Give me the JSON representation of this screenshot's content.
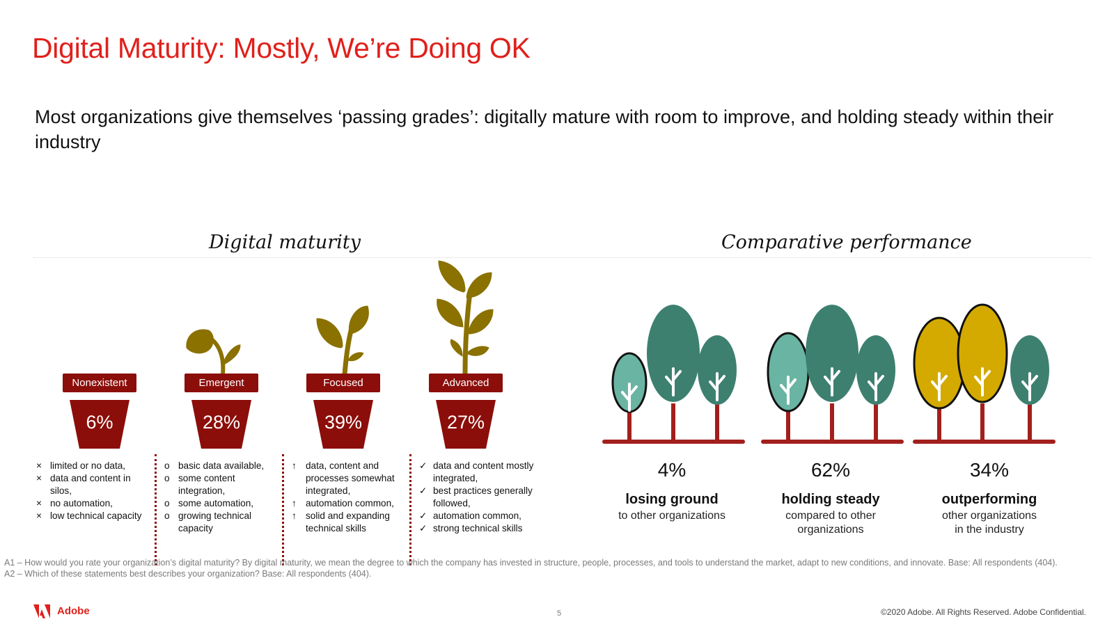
{
  "title": "Digital Maturity: Mostly, We’re Doing OK",
  "subtitle": "Most organizations give themselves ‘passing grades’: digitally mature with room to improve, and holding steady within their industry",
  "sections": {
    "left": "Digital maturity",
    "right": "Comparative performance"
  },
  "maturity": [
    {
      "label": "Nonexistent",
      "percent": "6%",
      "bullet": "×",
      "items": [
        "limited or no data,",
        "data and content in silos,",
        "no automation,",
        "low technical capacity"
      ]
    },
    {
      "label": "Emergent",
      "percent": "28%",
      "bullet": "o",
      "items": [
        "basic data available,",
        "some content integration,",
        "some automation,",
        "growing technical capacity"
      ]
    },
    {
      "label": "Focused",
      "percent": "39%",
      "bullet": "↑",
      "items": [
        "data, content and processes somewhat integrated,",
        "automation common,",
        "solid and expanding technical skills"
      ]
    },
    {
      "label": "Advanced",
      "percent": "27%",
      "bullet": "✓",
      "items": [
        "data and content mostly integrated,",
        "best practices generally followed,",
        "automation common,",
        "strong technical skills"
      ]
    }
  ],
  "performance": [
    {
      "percent": "4%",
      "heading": "losing ground",
      "lines": [
        "to other organizations"
      ]
    },
    {
      "percent": "62%",
      "heading": "holding steady",
      "lines": [
        "compared to other",
        "organizations"
      ]
    },
    {
      "percent": "34%",
      "heading": "outperforming",
      "lines": [
        "other organizations",
        "in the industry"
      ]
    }
  ],
  "footnotes": {
    "a1": "A1 – How would you rate your organization’s digital maturity? By digital maturity, we mean the degree to which the company has invested in structure, people, processes, and tools to understand the market, adapt to new conditions, and innovate. Base: All respondents (404).",
    "a2": "A2 – Which of these statements best describes your organization? Base: All respondents (404)."
  },
  "footer": {
    "brand": "Adobe",
    "page": "5",
    "copyright": "©2020 Adobe. All Rights Reserved. Adobe Confidential."
  },
  "colors": {
    "title_red": "#e0201b",
    "pot_red": "#8b0e0a",
    "plant_olive": "#8a7100",
    "tree_teal": "#3d8070",
    "tree_light_teal": "#6ab4a3",
    "tree_gold": "#d4aa00",
    "ground_red": "#a21f1c"
  },
  "icons": [
    "plant-seedling-icon",
    "plant-sprout-icon",
    "plant-tall-icon",
    "tree-icon",
    "adobe-logo-icon"
  ]
}
